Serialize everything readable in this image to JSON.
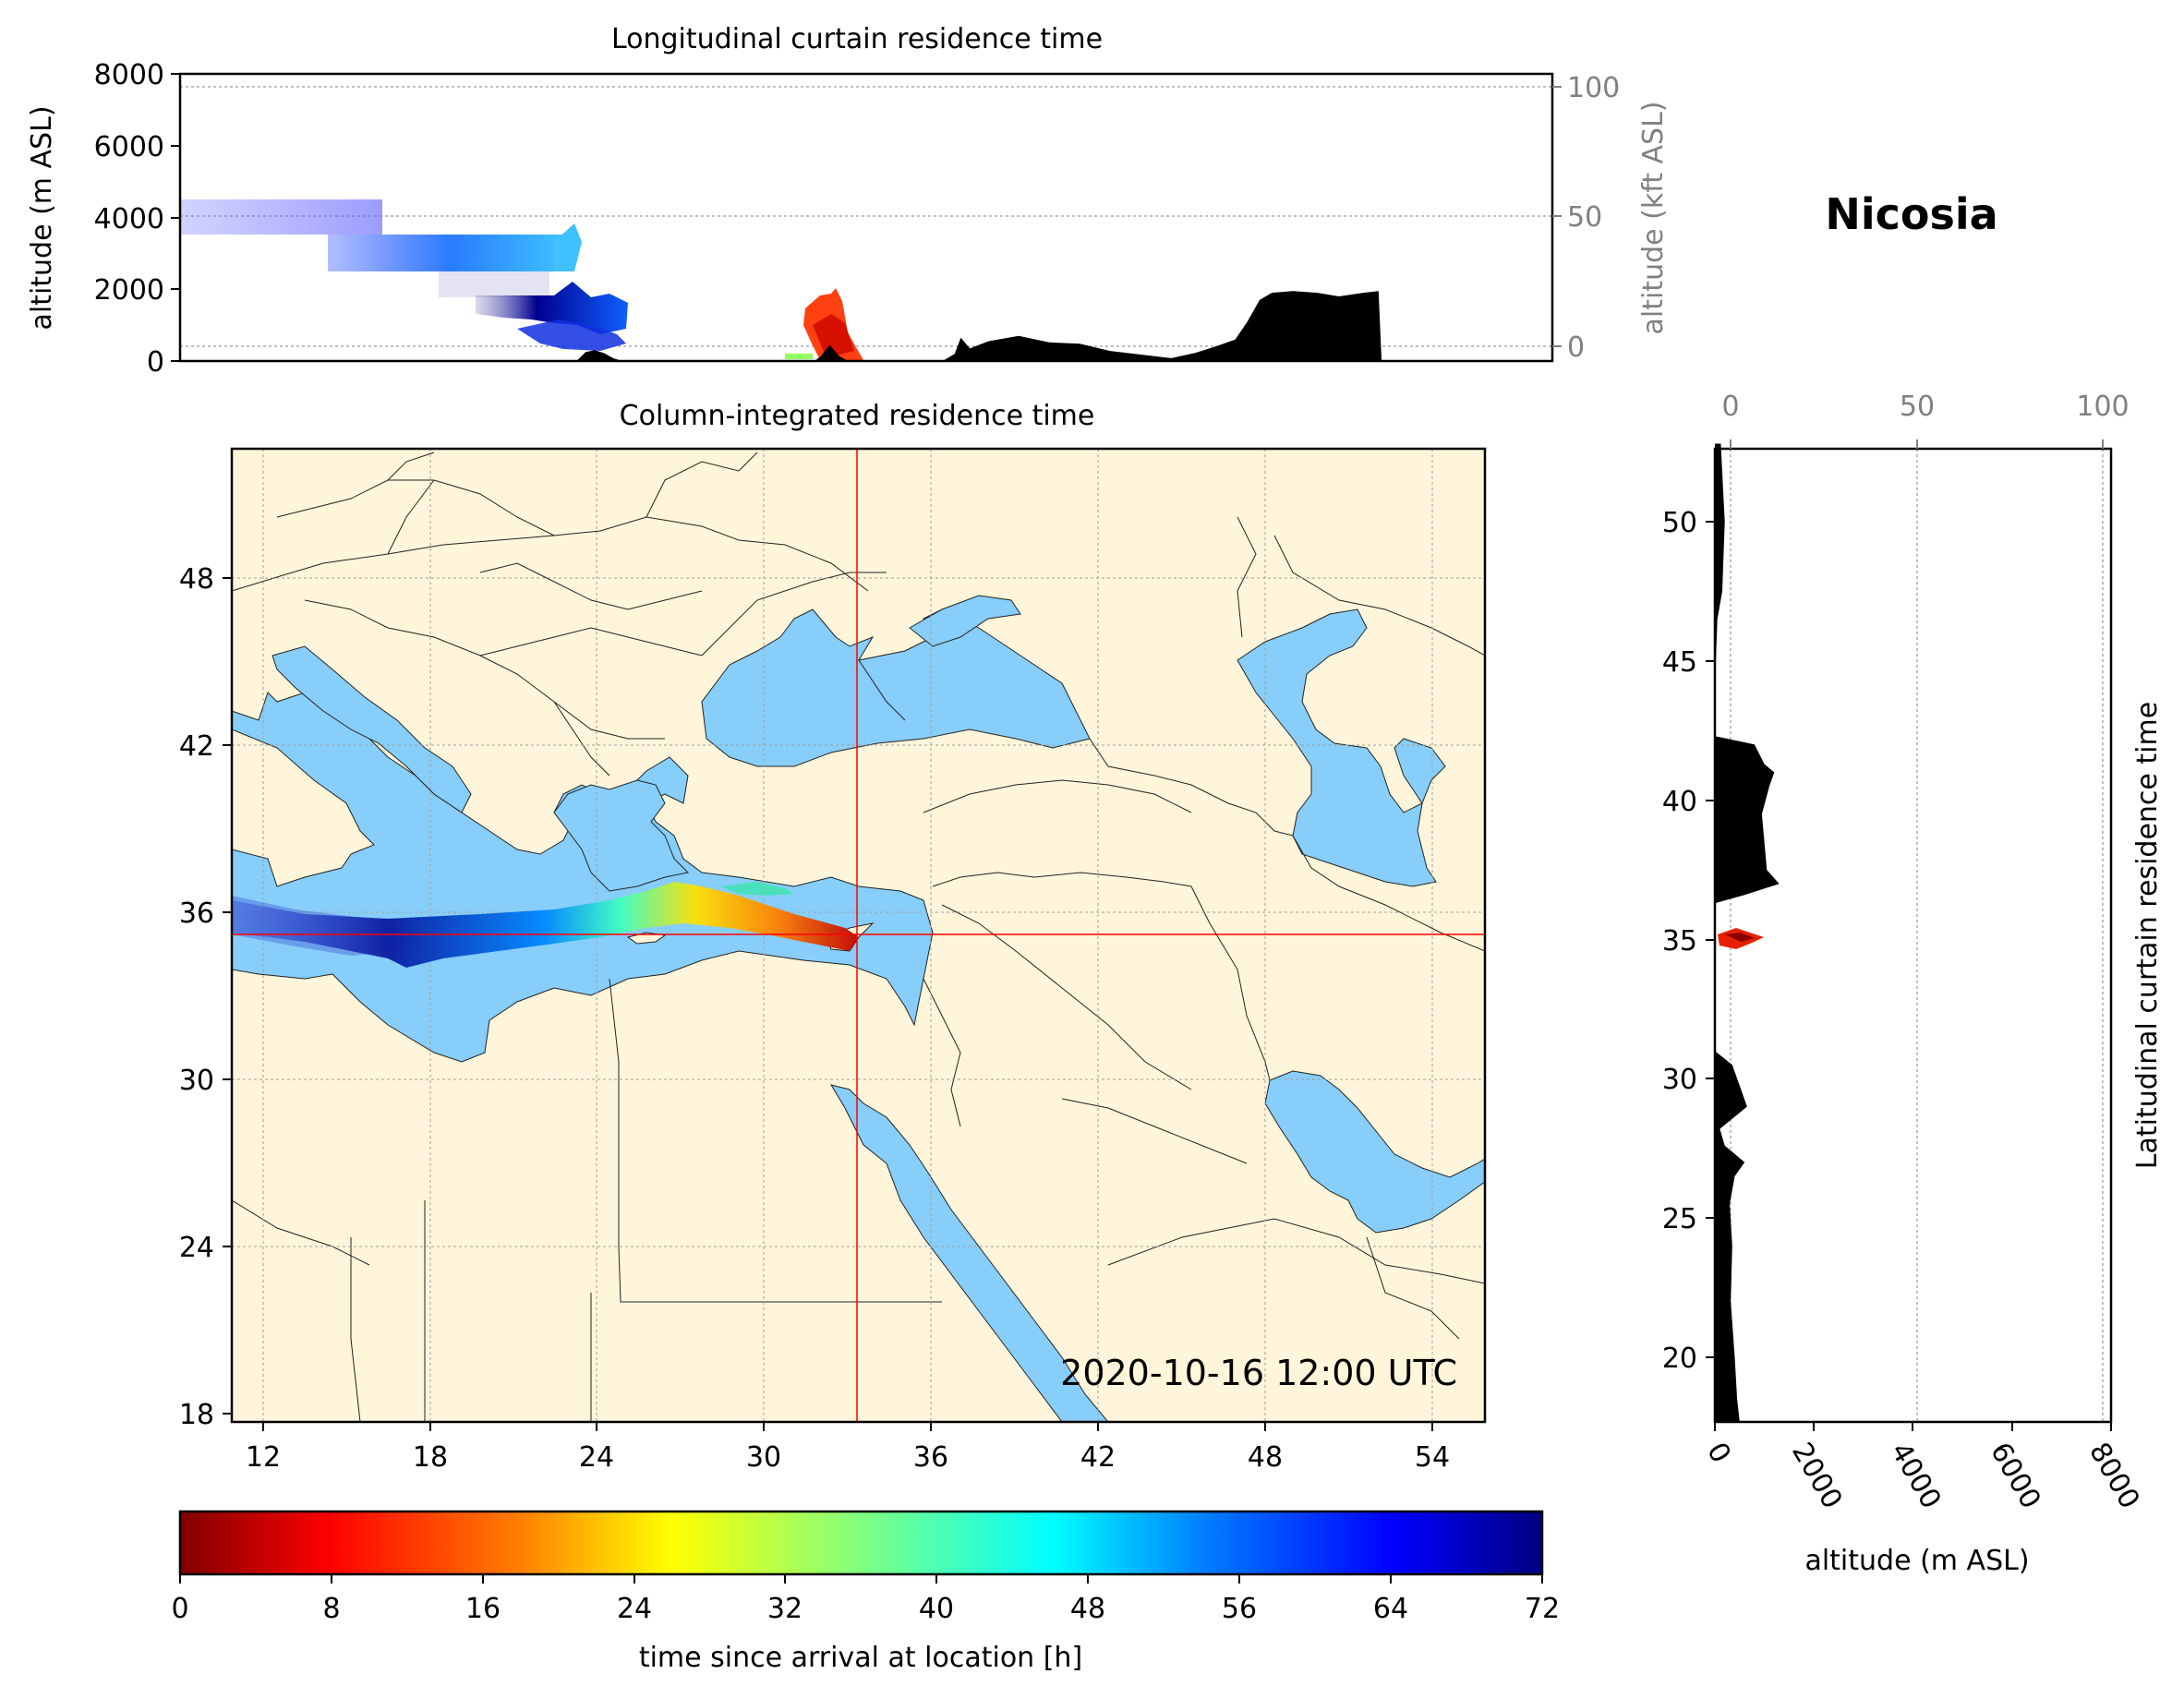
{
  "station": {
    "name": "Nicosia",
    "lon": 33.4,
    "lat": 35.2
  },
  "top_panel": {
    "title": "Longitudinal curtain residence time",
    "ylabel": "altitude (m ASL)",
    "ylabel_right": "altitude (kft ASL)",
    "ylim": [
      0,
      8000
    ],
    "yticks": [
      "0",
      "2000",
      "4000",
      "6000",
      "8000"
    ],
    "right_ticks": [
      "0",
      "50",
      "100"
    ],
    "terrain_profile": [
      {
        "lon": 24.0,
        "alt": 0
      },
      {
        "lon": 24.3,
        "alt": 250
      },
      {
        "lon": 24.6,
        "alt": 300
      },
      {
        "lon": 24.9,
        "alt": 220
      },
      {
        "lon": 25.2,
        "alt": 80
      },
      {
        "lon": 25.5,
        "alt": 0
      },
      {
        "lon": 31.8,
        "alt": 0
      },
      {
        "lon": 32.0,
        "alt": 120
      },
      {
        "lon": 32.3,
        "alt": 450
      },
      {
        "lon": 32.6,
        "alt": 150
      },
      {
        "lon": 32.9,
        "alt": 0
      },
      {
        "lon": 36.0,
        "alt": 0
      },
      {
        "lon": 36.4,
        "alt": 200
      },
      {
        "lon": 36.6,
        "alt": 650
      },
      {
        "lon": 36.9,
        "alt": 350
      },
      {
        "lon": 37.5,
        "alt": 550
      },
      {
        "lon": 38.5,
        "alt": 700
      },
      {
        "lon": 39.5,
        "alt": 520
      },
      {
        "lon": 40.5,
        "alt": 480
      },
      {
        "lon": 41.5,
        "alt": 280
      },
      {
        "lon": 42.5,
        "alt": 180
      },
      {
        "lon": 43.5,
        "alt": 80
      },
      {
        "lon": 44.3,
        "alt": 230
      },
      {
        "lon": 45.0,
        "alt": 420
      },
      {
        "lon": 45.6,
        "alt": 600
      },
      {
        "lon": 46.0,
        "alt": 1100
      },
      {
        "lon": 46.4,
        "alt": 1700
      },
      {
        "lon": 46.8,
        "alt": 1900
      },
      {
        "lon": 47.5,
        "alt": 1950
      },
      {
        "lon": 48.3,
        "alt": 1900
      },
      {
        "lon": 49.0,
        "alt": 1800
      },
      {
        "lon": 49.8,
        "alt": 1900
      },
      {
        "lon": 50.3,
        "alt": 1950
      },
      {
        "lon": 50.4,
        "alt": 0
      }
    ]
  },
  "map_panel": {
    "title": "Column-integrated residence time",
    "timestamp": "2020-10-16 12:00 UTC",
    "lon_range": [
      11,
      56
    ],
    "lat_range": [
      18,
      53
    ],
    "xticks": [
      "12",
      "18",
      "24",
      "30",
      "36",
      "42",
      "48",
      "54"
    ],
    "yticks": [
      "18",
      "24",
      "30",
      "36",
      "42",
      "48"
    ],
    "colors": {
      "land": "#fff5da",
      "water": "#87cefa",
      "border": "#000000",
      "crosshair": "#ff0000"
    }
  },
  "side_panel": {
    "ylabel": "Latitudinal curtain residence time",
    "xlabel": "altitude (m ASL)",
    "yticks": [
      "20",
      "25",
      "30",
      "35",
      "40",
      "45",
      "50"
    ],
    "xticks": [
      "0",
      "2000",
      "4000",
      "6000",
      "8000"
    ],
    "top_ticks": [
      "0",
      "50",
      "100"
    ],
    "xlim": [
      0,
      8000
    ],
    "terrain_profile": [
      {
        "lat": 52.8,
        "alt": 120
      },
      {
        "lat": 50.0,
        "alt": 200
      },
      {
        "lat": 47.5,
        "alt": 150
      },
      {
        "lat": 46.5,
        "alt": 50
      },
      {
        "lat": 44.0,
        "alt": 0
      },
      {
        "lat": 42.3,
        "alt": 0
      },
      {
        "lat": 42.0,
        "alt": 800
      },
      {
        "lat": 41.3,
        "alt": 1000
      },
      {
        "lat": 41.0,
        "alt": 1200
      },
      {
        "lat": 40.5,
        "alt": 1100
      },
      {
        "lat": 39.5,
        "alt": 950
      },
      {
        "lat": 38.5,
        "alt": 1000
      },
      {
        "lat": 37.5,
        "alt": 1050
      },
      {
        "lat": 37.0,
        "alt": 1300
      },
      {
        "lat": 36.6,
        "alt": 600
      },
      {
        "lat": 36.3,
        "alt": 0
      },
      {
        "lat": 31.0,
        "alt": 0
      },
      {
        "lat": 30.5,
        "alt": 350
      },
      {
        "lat": 29.0,
        "alt": 650
      },
      {
        "lat": 28.2,
        "alt": 100
      },
      {
        "lat": 27.6,
        "alt": 200
      },
      {
        "lat": 27.0,
        "alt": 600
      },
      {
        "lat": 26.5,
        "alt": 400
      },
      {
        "lat": 25.5,
        "alt": 300
      },
      {
        "lat": 24.0,
        "alt": 350
      },
      {
        "lat": 22.0,
        "alt": 320
      },
      {
        "lat": 20.0,
        "alt": 400
      },
      {
        "lat": 18.5,
        "alt": 450
      },
      {
        "lat": 17.7,
        "alt": 500
      }
    ]
  },
  "colorbar": {
    "label": "time since arrival at location [h]",
    "ticks": [
      "0",
      "8",
      "16",
      "24",
      "32",
      "40",
      "48",
      "56",
      "64",
      "72"
    ],
    "range": [
      0,
      72
    ],
    "colormap": [
      "#800000",
      "#ff0000",
      "#ff8000",
      "#ffff00",
      "#80ff80",
      "#00ffff",
      "#0080ff",
      "#0000ff",
      "#000080"
    ]
  }
}
